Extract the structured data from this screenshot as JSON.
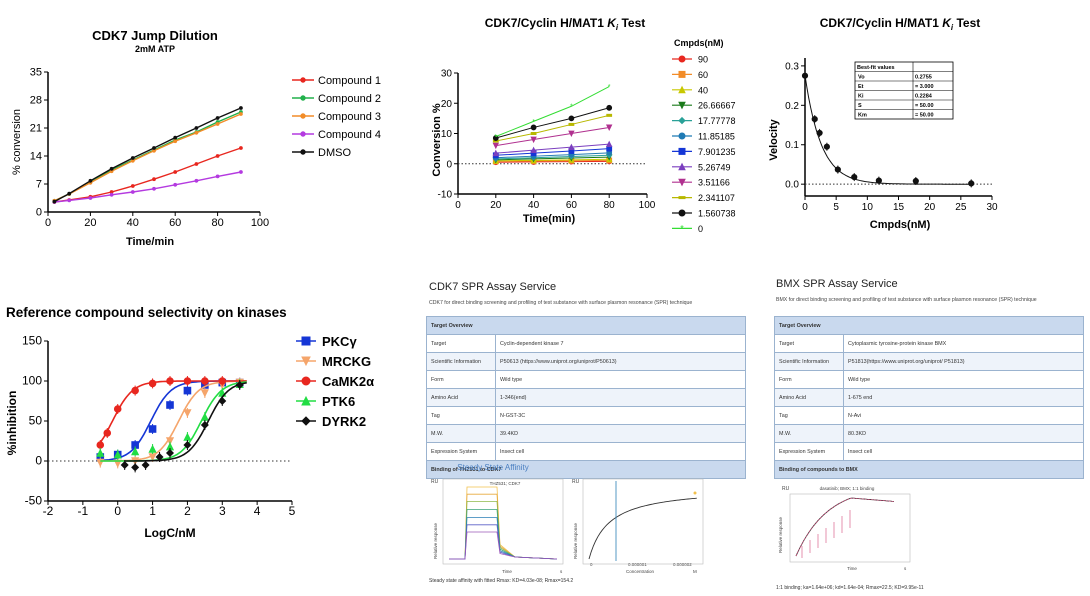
{
  "colors": {
    "red": "#e8271f",
    "green": "#22b14c",
    "orange": "#f28c28",
    "purple": "#b43ae0",
    "black": "#111111"
  },
  "jump": {
    "title": "CDK7 Jump Dilution",
    "subtitle": "2mM ATP",
    "xlabel": "Time/min",
    "ylabel": "% conversion",
    "xticks": [
      "0",
      "20",
      "40",
      "60",
      "80",
      "100"
    ],
    "yticks": [
      "0",
      "7",
      "14",
      "21",
      "28",
      "35"
    ],
    "legend": [
      "Compound 1",
      "Compound 2",
      "Compound 3",
      "Compound 4",
      "DMSO"
    ]
  },
  "ki_test": {
    "title_pre": "CDK7/Cyclin H/MAT1 ",
    "title_k": "K",
    "title_sub": "i",
    "title_post": " Test",
    "xlabel": "Time(min)",
    "ylabel": "Conversion %",
    "xticks": [
      "0",
      "20",
      "40",
      "60",
      "80",
      "100"
    ],
    "yticks": [
      "-10",
      "0",
      "10",
      "20",
      "30"
    ],
    "legend_title": "Cmpds(nM)",
    "legend": [
      "90",
      "60",
      "40",
      "26.66667",
      "17.77778",
      "11.85185",
      "7.901235",
      "5.26749",
      "3.51166",
      "2.341107",
      "1.560738",
      "0"
    ]
  },
  "velocity": {
    "title_pre": "CDK7/Cyclin H/MAT1 ",
    "title_k": "K",
    "title_sub": "i",
    "title_post": " Test",
    "xlabel": "Cmpds(nM)",
    "ylabel": "Velocity",
    "xticks": [
      "0",
      "5",
      "10",
      "15",
      "20",
      "25",
      "30"
    ],
    "yticks": [
      "0.0",
      "0.1",
      "0.2",
      "0.3"
    ],
    "fit_header": "Best-fit values",
    "fit_rows": [
      [
        "Vo",
        "0.2755"
      ],
      [
        "Et",
        "= 3.000"
      ],
      [
        "Ki",
        "0.2284"
      ],
      [
        "S",
        "= 50.00"
      ],
      [
        "Km",
        "= 50.00"
      ]
    ]
  },
  "selectivity": {
    "title": "Reference compound selectivity on kinases",
    "xlabel": "LogC/nM",
    "ylabel": "%inhibition",
    "xticks": [
      "-2",
      "-1",
      "0",
      "1",
      "2",
      "3",
      "4",
      "5"
    ],
    "yticks": [
      "-50",
      "0",
      "50",
      "100",
      "150"
    ],
    "legend": [
      "PKCγ",
      "MRCKG",
      "CaMK2α",
      "PTK6",
      "DYRK2"
    ]
  },
  "cdk7_spr": {
    "title": "CDK7 SPR Assay Service",
    "subtitle": "CDK7 for direct binding screening and profiling of test substance with surface plasmon resonance (SPR) technique",
    "header": "Target Overview",
    "rows": [
      [
        "Target",
        "Cyclin-dependent kinase 7"
      ],
      [
        "Scientific Information",
        "P50613 (https://www.uniprot.org/uniprot/P50613)"
      ],
      [
        "Form",
        "Wild type"
      ],
      [
        "Amino Acid",
        "1-346(end)"
      ],
      [
        "Tag",
        "N-GST-3C"
      ],
      [
        "M.W.",
        "39.4KD"
      ],
      [
        "Expression System",
        "Insect cell"
      ]
    ],
    "footer": "Binding of THZ531 to CDK7",
    "sensor_title": "Steady State Affinity",
    "sensor_label": "THZ531; CDK7",
    "ru": "RU",
    "yaxis": "Relative response",
    "time": "Time",
    "s": "s",
    "conc": "Concentration",
    "m": "M",
    "conc_ticks": [
      "0",
      "0.000001",
      "0.000002"
    ],
    "note": "Steady state affinity with fitted Rmax: KD=4.03e-08; Rmax=154.2"
  },
  "bmx_spr": {
    "title": "BMX SPR Assay Service",
    "subtitle": "BMX for direct binding screening and profiling of test substance with surface plasmon resonance (SPR) technique",
    "header": "Target Overview",
    "rows": [
      [
        "Target",
        "Cytoplasmic tyrosine-protein kinase BMX"
      ],
      [
        "Scientific Information",
        "P51813(https://www.uniprot.org/uniprot/ P51813)"
      ],
      [
        "Form",
        "Wild type"
      ],
      [
        "Amino Acid",
        "1-675 end"
      ],
      [
        "Tag",
        "N-Avi"
      ],
      [
        "M.W.",
        "80.3KD"
      ],
      [
        "Expression System",
        "Insect cell"
      ]
    ],
    "footer": "Binding of compounds to BMX",
    "sensor_label": "dasatinib; BMX; 1:1 binding",
    "ru": "RU",
    "yaxis": "Relative response",
    "time": "Time",
    "s": "s",
    "note": "1:1 binding; ka=1.64e+06; kd=1.64e-04; Rmax=22.5; KD=9.95e-11"
  },
  "chart_data": [
    {
      "type": "line",
      "title": "CDK7 Jump Dilution",
      "subtitle": "2mM ATP",
      "xlabel": "Time/min",
      "ylabel": "% conversion",
      "xlim": [
        0,
        100
      ],
      "ylim": [
        0,
        35
      ],
      "legend_position": "top-right",
      "series": [
        {
          "name": "Compound 1",
          "color": "#e8271f",
          "x": [
            3,
            10,
            20,
            30,
            40,
            50,
            60,
            70,
            80,
            91
          ],
          "y": [
            2.5,
            3.0,
            3.8,
            5.0,
            6.5,
            8.2,
            10.0,
            12.0,
            14.0,
            16.0
          ]
        },
        {
          "name": "Compound 2",
          "color": "#22b14c",
          "x": [
            3,
            10,
            20,
            30,
            40,
            50,
            60,
            70,
            80,
            91
          ],
          "y": [
            2.8,
            4.5,
            7.5,
            10.5,
            13.0,
            15.5,
            18.0,
            20.0,
            22.5,
            25.0
          ]
        },
        {
          "name": "Compound 3",
          "color": "#f28c28",
          "x": [
            3,
            10,
            20,
            30,
            40,
            50,
            60,
            70,
            80,
            91
          ],
          "y": [
            2.8,
            4.5,
            7.3,
            10.2,
            12.8,
            15.3,
            17.7,
            19.8,
            22.0,
            24.5
          ]
        },
        {
          "name": "Compound 4",
          "color": "#b43ae0",
          "x": [
            3,
            10,
            20,
            30,
            40,
            50,
            60,
            70,
            80,
            91
          ],
          "y": [
            2.5,
            2.9,
            3.5,
            4.3,
            5.0,
            5.8,
            6.8,
            7.8,
            8.9,
            10.0
          ]
        },
        {
          "name": "DMSO",
          "color": "#111111",
          "x": [
            3,
            10,
            20,
            30,
            40,
            50,
            60,
            70,
            80,
            91
          ],
          "y": [
            2.6,
            4.6,
            7.8,
            10.8,
            13.5,
            16.0,
            18.6,
            21.0,
            23.5,
            26.0
          ]
        }
      ]
    },
    {
      "type": "line",
      "title": "CDK7/Cyclin H/MAT1 Ki Test",
      "xlabel": "Time(min)",
      "ylabel": "Conversion %",
      "xlim": [
        0,
        100
      ],
      "ylim": [
        -10,
        30
      ],
      "legend_title": "Cmpds(nM)",
      "legend_position": "right",
      "x": [
        20,
        40,
        60,
        80
      ],
      "series": [
        {
          "name": "90",
          "color": "#e8271f",
          "marker": "circle",
          "values": [
            0.5,
            0.6,
            0.7,
            0.8
          ]
        },
        {
          "name": "60",
          "color": "#f28c28",
          "marker": "square",
          "values": [
            0.8,
            0.9,
            1.0,
            1.1
          ]
        },
        {
          "name": "40",
          "color": "#c8c800",
          "marker": "triangle",
          "values": [
            1.0,
            1.1,
            1.3,
            1.5
          ]
        },
        {
          "name": "26.66667",
          "color": "#1a7a1a",
          "marker": "triangle-down",
          "values": [
            1.3,
            1.6,
            1.9,
            2.2
          ]
        },
        {
          "name": "17.77778",
          "color": "#2aa198",
          "marker": "diamond",
          "values": [
            1.6,
            2.0,
            2.4,
            2.8
          ]
        },
        {
          "name": "11.85185",
          "color": "#1f7ab4",
          "marker": "circle",
          "values": [
            2.0,
            2.5,
            3.0,
            3.6
          ]
        },
        {
          "name": "7.901235",
          "color": "#1536d6",
          "marker": "square",
          "values": [
            2.8,
            3.5,
            4.2,
            5.0
          ]
        },
        {
          "name": "5.26749",
          "color": "#7b3fbf",
          "marker": "triangle",
          "values": [
            3.5,
            4.5,
            5.5,
            6.5
          ]
        },
        {
          "name": "3.51166",
          "color": "#b0308f",
          "marker": "triangle-down",
          "values": [
            6.0,
            8.0,
            10.0,
            12.0
          ]
        },
        {
          "name": "2.341107",
          "color": "#b8b800",
          "marker": "dash",
          "values": [
            7.5,
            10.0,
            13.0,
            16.0
          ]
        },
        {
          "name": "1.560738",
          "color": "#111111",
          "marker": "circle",
          "values": [
            8.5,
            12.0,
            15.0,
            18.5
          ]
        },
        {
          "name": "0",
          "color": "#33dd33",
          "marker": "star",
          "values": [
            9.0,
            14.0,
            19.0,
            25.5
          ]
        }
      ]
    },
    {
      "type": "scatter",
      "title": "CDK7/Cyclin H/MAT1 Ki Test",
      "xlabel": "Cmpds(nM)",
      "ylabel": "Velocity",
      "xlim": [
        0,
        30
      ],
      "ylim": [
        -0.03,
        0.32
      ],
      "x": [
        0,
        1.56,
        2.34,
        3.51,
        5.27,
        7.9,
        11.85,
        17.78,
        26.67
      ],
      "y": [
        0.275,
        0.165,
        0.13,
        0.095,
        0.037,
        0.018,
        0.009,
        0.008,
        0.002
      ],
      "fit": "Morrison",
      "fit_values": {
        "Vo": "0.2755",
        "Et": "= 3.000",
        "Ki": "0.2284",
        "S": "= 50.00",
        "Km": "= 50.00"
      }
    },
    {
      "type": "line",
      "title": "Reference compound selectivity on kinases",
      "xlabel": "LogC/nM",
      "ylabel": "%inhibition",
      "xlim": [
        -2,
        5
      ],
      "ylim": [
        -50,
        150
      ],
      "legend_position": "right",
      "series": [
        {
          "name": "PKCγ",
          "color": "#1536d6",
          "marker": "square",
          "x": [
            -0.5,
            0,
            0.5,
            1,
            1.5,
            2,
            2.5,
            3,
            3.5
          ],
          "y": [
            5,
            8,
            20,
            40,
            70,
            88,
            95,
            98,
            98
          ]
        },
        {
          "name": "MRCKG",
          "color": "#f5a56b",
          "marker": "triangle-down",
          "x": [
            -0.5,
            0,
            0.5,
            1,
            1.5,
            2,
            2.5,
            3,
            3.5
          ],
          "y": [
            -2,
            -3,
            0,
            5,
            25,
            60,
            85,
            95,
            98
          ]
        },
        {
          "name": "CaMK2α",
          "color": "#e8271f",
          "marker": "circle",
          "x": [
            -0.5,
            -0.3,
            0,
            0.5,
            1,
            1.5,
            2,
            2.5,
            3
          ],
          "y": [
            20,
            35,
            65,
            88,
            97,
            100,
            100,
            100,
            100
          ]
        },
        {
          "name": "PTK6",
          "color": "#22dd44",
          "marker": "triangle",
          "x": [
            -0.5,
            0,
            0.5,
            1,
            1.5,
            2,
            2.5,
            3,
            3.5
          ],
          "y": [
            10,
            8,
            12,
            15,
            18,
            30,
            55,
            85,
            96
          ]
        },
        {
          "name": "DYRK2",
          "color": "#111111",
          "marker": "diamond",
          "x": [
            0.2,
            0.5,
            0.8,
            1.2,
            1.5,
            2,
            2.5,
            3,
            3.5
          ],
          "y": [
            -5,
            -8,
            -5,
            5,
            10,
            20,
            45,
            75,
            95
          ]
        }
      ]
    }
  ]
}
